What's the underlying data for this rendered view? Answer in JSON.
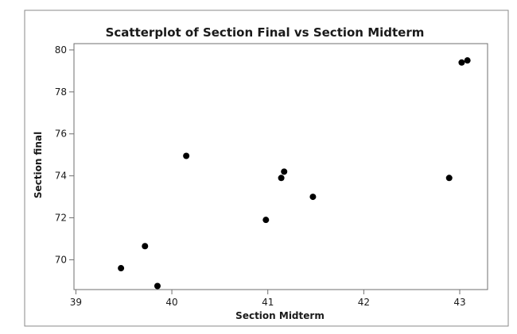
{
  "chart_data": {
    "type": "scatter",
    "title": "Scatterplot of Section Final vs Section Midterm",
    "xlabel": "Section Midterm",
    "ylabel": "Section final",
    "xlim": [
      38.98,
      43.29
    ],
    "ylim": [
      68.58,
      80.3
    ],
    "x_ticks": [
      39,
      40,
      41,
      42,
      43
    ],
    "y_ticks": [
      70,
      72,
      74,
      76,
      78,
      80
    ],
    "x_tick_labels": [
      "39",
      "40",
      "41",
      "42",
      "43"
    ],
    "y_tick_labels": [
      "70",
      "72",
      "74",
      "76",
      "78",
      "80"
    ],
    "grid": false,
    "legend": "none",
    "marker_color": "#000000",
    "points": [
      {
        "x": 39.47,
        "y": 69.6
      },
      {
        "x": 39.72,
        "y": 70.65
      },
      {
        "x": 39.85,
        "y": 68.75
      },
      {
        "x": 40.15,
        "y": 74.95
      },
      {
        "x": 40.98,
        "y": 71.9
      },
      {
        "x": 41.14,
        "y": 73.9
      },
      {
        "x": 41.17,
        "y": 74.2
      },
      {
        "x": 41.47,
        "y": 73.0
      },
      {
        "x": 42.89,
        "y": 73.9
      },
      {
        "x": 43.02,
        "y": 79.4
      },
      {
        "x": 43.08,
        "y": 79.5
      }
    ]
  }
}
